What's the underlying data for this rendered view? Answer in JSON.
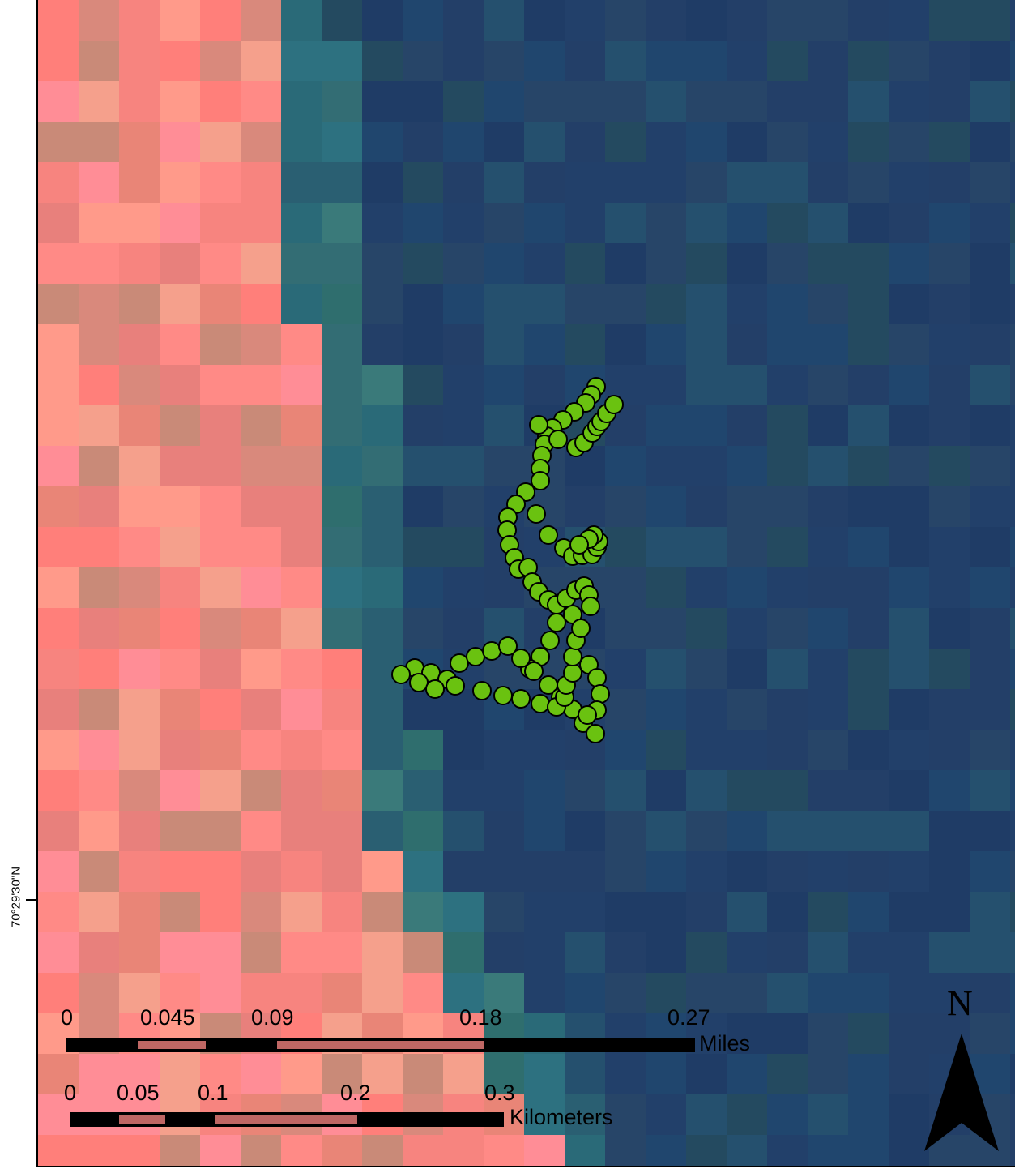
{
  "map": {
    "latitude_label": "70°29'30\"N",
    "colors": {
      "land": "#ff8a86",
      "shore": "#2a6a78",
      "water": "#22406a",
      "track_fill": "#6ac210",
      "track_stroke": "#000000"
    }
  },
  "scale_miles": {
    "ticks": [
      "0",
      "0.045",
      "0.09",
      "0.18",
      "0.27"
    ],
    "unit": "Miles"
  },
  "scale_km": {
    "ticks": [
      "0",
      "0.05",
      "0.1",
      "0.2",
      "0.3"
    ],
    "unit": "Kilometers"
  },
  "north_arrow": {
    "label": "N",
    "icon": "north-arrow-icon"
  }
}
